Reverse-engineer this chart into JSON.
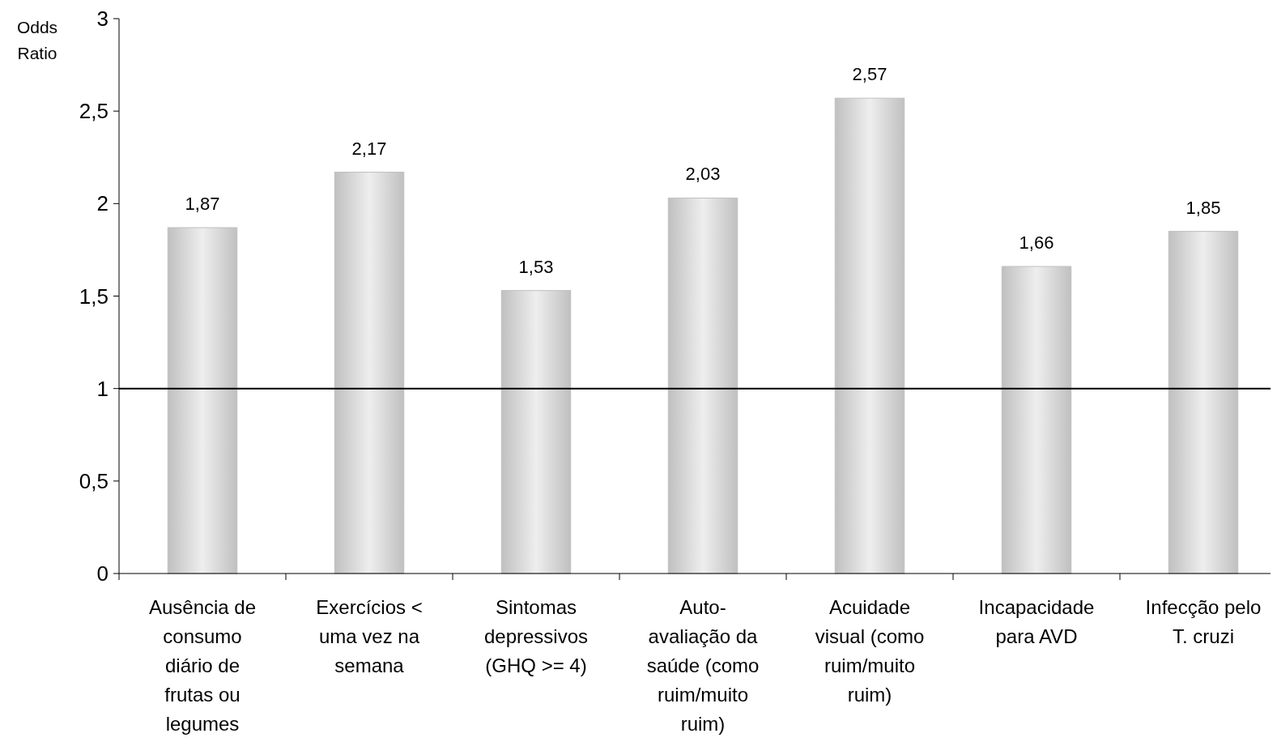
{
  "chart_data": {
    "type": "bar",
    "ylabel": "Odds Ratio",
    "categories": [
      "Ausência de consumo diário de frutas ou legumes",
      "Exercícios < uma vez na semana",
      "Sintomas depressivos (GHQ >= 4)",
      "Auto-avaliação da saúde (como ruim/muito ruim)",
      "Acuidade visual (como ruim/muito ruim)",
      "Incapacidade para AVD",
      "Infecção pelo T. cruzi"
    ],
    "values": [
      1.87,
      2.17,
      1.53,
      2.03,
      2.57,
      1.66,
      1.85
    ],
    "value_labels": [
      "1,87",
      "2,17",
      "1,53",
      "2,03",
      "2,57",
      "1,66",
      "1,85"
    ],
    "color": "#c0c0c0",
    "ylim": [
      0,
      3
    ],
    "yticks": [
      0,
      {
        "value": 0.5,
        "label": "0,5"
      },
      1,
      {
        "value": 1.5,
        "label": "1,5"
      },
      2,
      {
        "value": 2.5,
        "label": "2,5"
      },
      3
    ],
    "ref_lines": [
      {
        "axis": "y",
        "value": 1,
        "color": "#000000"
      }
    ],
    "grid": false
  }
}
